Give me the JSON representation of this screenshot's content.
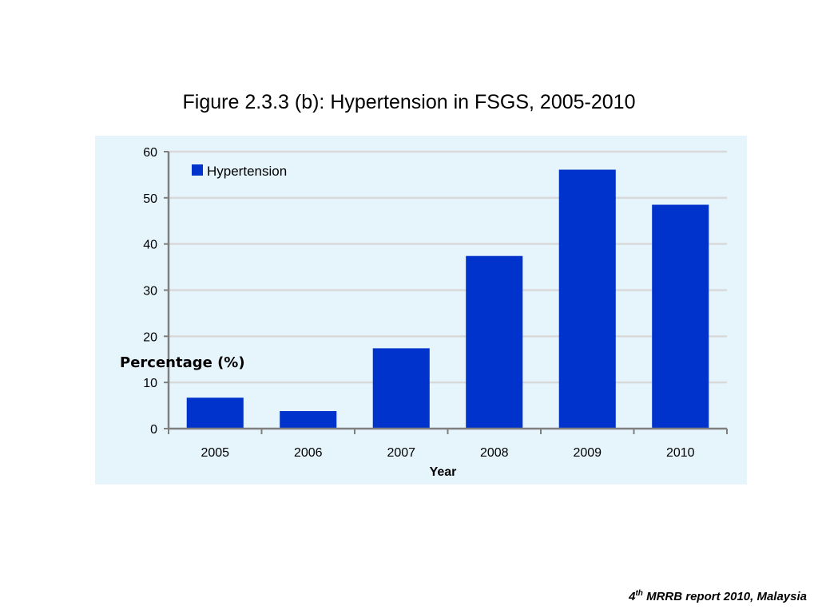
{
  "slide": {
    "title": "Figure 2.3.3 (b): Hypertension in FSGS, 2005-2010",
    "footer": {
      "number": "4",
      "superscript": "th",
      "text": " MRRB report 2010, Malaysia"
    }
  },
  "colors": {
    "bar": "#0033cc",
    "plot_background": "#e6f4fc",
    "gridline": "#d9d9d9",
    "axis": "#7f7f7f"
  },
  "chart_data": {
    "type": "bar",
    "categories": [
      "2005",
      "2006",
      "2007",
      "2008",
      "2009",
      "2010"
    ],
    "series": [
      {
        "name": "Hypertension",
        "values": [
          6.7,
          3.8,
          17.4,
          37.4,
          56.1,
          48.5
        ]
      }
    ],
    "xlabel": "Year",
    "ylabel": "Percentage (%)",
    "ylim": [
      0,
      60
    ],
    "yticks": [
      0,
      10,
      20,
      30,
      40,
      50,
      60
    ],
    "grid": true,
    "legend": "top-left"
  }
}
